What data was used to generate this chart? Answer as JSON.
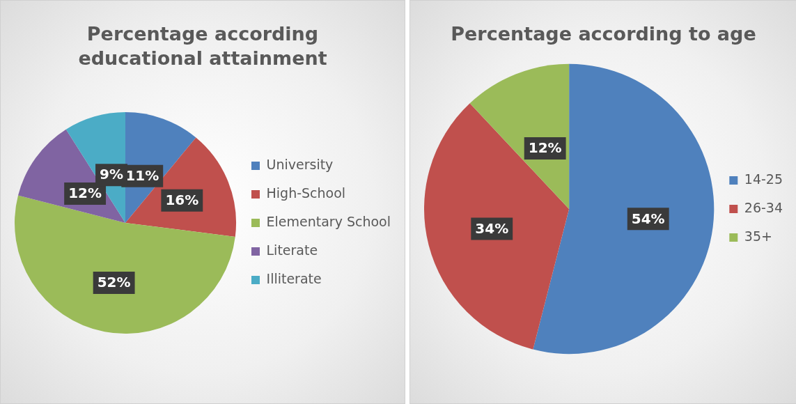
{
  "chart_data": [
    {
      "type": "pie",
      "title": "Percentage according educational attainment",
      "categories": [
        "University",
        "High-School",
        "Elementary School",
        "Literate",
        "Illiterate"
      ],
      "values": [
        11,
        16,
        52,
        12,
        9
      ],
      "colors": [
        "#4f81bd",
        "#c0504d",
        "#9bbb59",
        "#8064a2",
        "#4bacc6"
      ],
      "value_labels": [
        "11%",
        "16%",
        "52%",
        "12%",
        "9%"
      ],
      "legend": "right"
    },
    {
      "type": "pie",
      "title": "Percentage according to age",
      "categories": [
        "14-25",
        "26-34",
        "35+"
      ],
      "values": [
        54,
        34,
        12
      ],
      "colors": [
        "#4f81bd",
        "#c0504d",
        "#9bbb59"
      ],
      "value_labels": [
        "54%",
        "34%",
        "12%"
      ],
      "legend": "right"
    }
  ]
}
